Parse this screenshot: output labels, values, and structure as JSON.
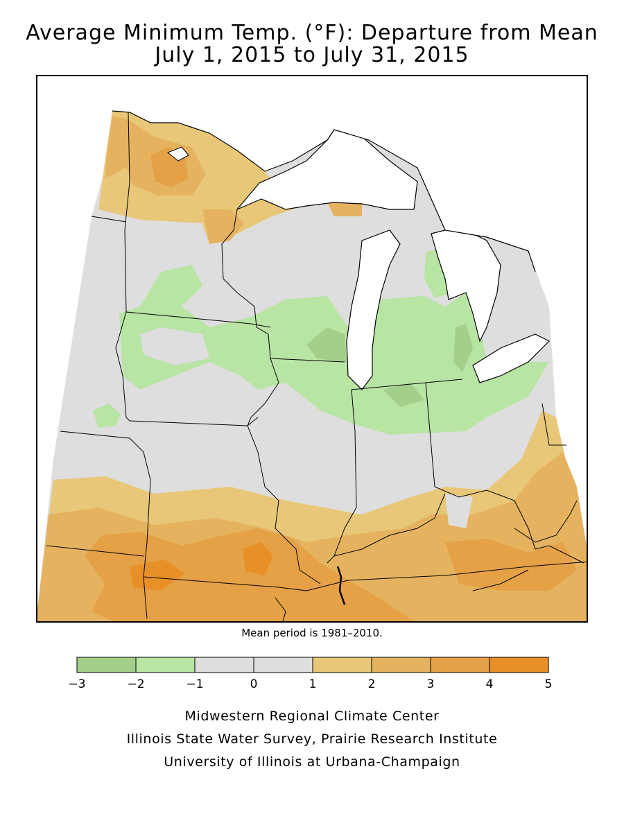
{
  "title": {
    "line1": "Average Minimum Temp. (°F): Departure from Mean",
    "line2": "July 1, 2015 to July 31, 2015"
  },
  "mean_note": "Mean period is 1981–2010.",
  "legend": {
    "bins": [
      {
        "min": -3,
        "max": -2,
        "color": "#a3cf8b"
      },
      {
        "min": -2,
        "max": -1,
        "color": "#b8e4a4"
      },
      {
        "min": -1,
        "max": 0,
        "color": "#dedede"
      },
      {
        "min": 0,
        "max": 1,
        "color": "#dedede"
      },
      {
        "min": 1,
        "max": 2,
        "color": "#e8c778"
      },
      {
        "min": 2,
        "max": 3,
        "color": "#e5b35f"
      },
      {
        "min": 3,
        "max": 4,
        "color": "#e5a145"
      },
      {
        "min": 4,
        "max": 5,
        "color": "#e89028"
      }
    ],
    "tick_labels": [
      "−3",
      "−2",
      "−1",
      "0",
      "1",
      "2",
      "3",
      "4",
      "5"
    ]
  },
  "colors": {
    "water": "#ffffff",
    "neutral": "#dedede",
    "green_light": "#b8e4a4",
    "green_dark": "#a3cf8b",
    "orange_1": "#e8c778",
    "orange_2": "#e5b35f",
    "orange_3": "#e5a145",
    "orange_4": "#e89028",
    "boundary": "#000000"
  },
  "credits": [
    "Midwestern Regional Climate Center",
    "Illinois State Water Survey, Prairie Research Institute",
    "University of Illinois at Urbana-Champaign"
  ]
}
